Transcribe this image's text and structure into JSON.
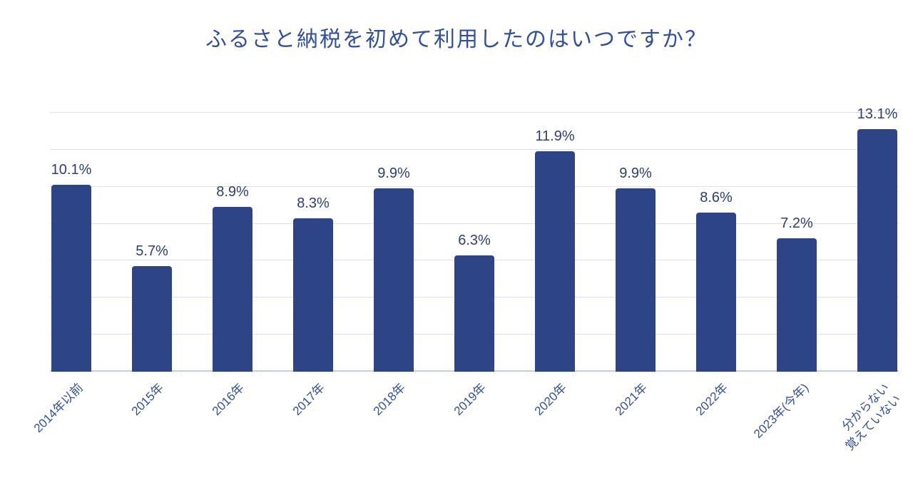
{
  "chart_data": {
    "type": "bar",
    "title": "ふるさと納税を初めて利用したのはいつですか？",
    "categories": [
      "2014年以前",
      "2015年",
      "2016年",
      "2017年",
      "2018年",
      "2019年",
      "2020年",
      "2021年",
      "2022年",
      "2023年(今年)",
      "分からない\n覚えていない"
    ],
    "values": [
      10.1,
      5.7,
      8.9,
      8.3,
      9.9,
      6.3,
      11.9,
      9.9,
      8.6,
      7.2,
      13.1
    ],
    "value_labels": [
      "10.1%",
      "5.7%",
      "8.9%",
      "8.3%",
      "9.9%",
      "6.3%",
      "11.9%",
      "9.9%",
      "8.6%",
      "7.2%",
      "13.1%"
    ],
    "xlabel": "",
    "ylabel": "",
    "ylim": [
      0,
      14
    ],
    "grid_interval": 2,
    "grid": true,
    "legend": "none",
    "y_axis_tick_labels": "none",
    "colors": {
      "bar": "#2d4487",
      "title": "#30509d",
      "data_label": "#2c3e76",
      "axis_label": "#32509c",
      "gridline": "#dbdeee",
      "axis_line": "#c9cedf",
      "background": "#ffffff"
    }
  }
}
